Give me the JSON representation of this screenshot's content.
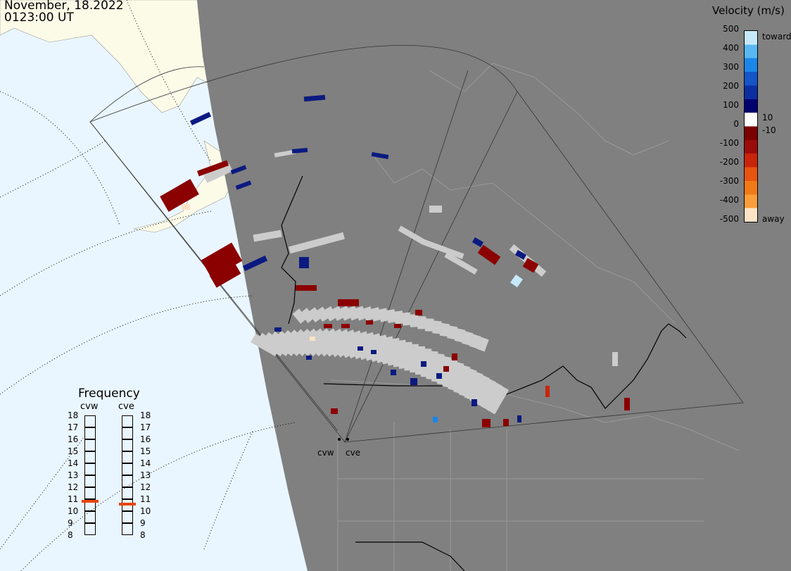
{
  "header": {
    "date": "November, 18.2022",
    "time": "0123:00 UT"
  },
  "colorbar": {
    "title": "Velocity (m/s)",
    "ticks": [
      "500",
      "400",
      "300",
      "200",
      "100",
      "10",
      "0",
      "-10",
      "-100",
      "-200",
      "-300",
      "-400",
      "-500"
    ],
    "toward_label": "toward",
    "away_label": "away",
    "colors": [
      "#fde3c6",
      "#fb9d3b",
      "#f07a16",
      "#e8550f",
      "#c8250a",
      "#9a0c0a",
      "#7b0000",
      "#ffffff",
      "#00006e",
      "#0b2fa0",
      "#1455c8",
      "#1a86e8",
      "#59b8f3",
      "#c5e9fb"
    ]
  },
  "frequency": {
    "title": "Frequency",
    "radars": [
      "cvw",
      "cve"
    ],
    "ticks": [
      "18",
      "17",
      "16",
      "15",
      "14",
      "13",
      "12",
      "11",
      "10",
      "9",
      "8"
    ],
    "cvw_value": 10.8,
    "cve_value": 10.6
  },
  "map": {
    "radar_labels": [
      "cvw",
      "cve"
    ],
    "land_color": "#808080",
    "ocean_color": "#eaf6ff",
    "night_land_color": "#fcfbe8",
    "scatter_gray": "#cccccc",
    "dark_red": "#8b0000",
    "dark_blue": "#0b1a80"
  }
}
